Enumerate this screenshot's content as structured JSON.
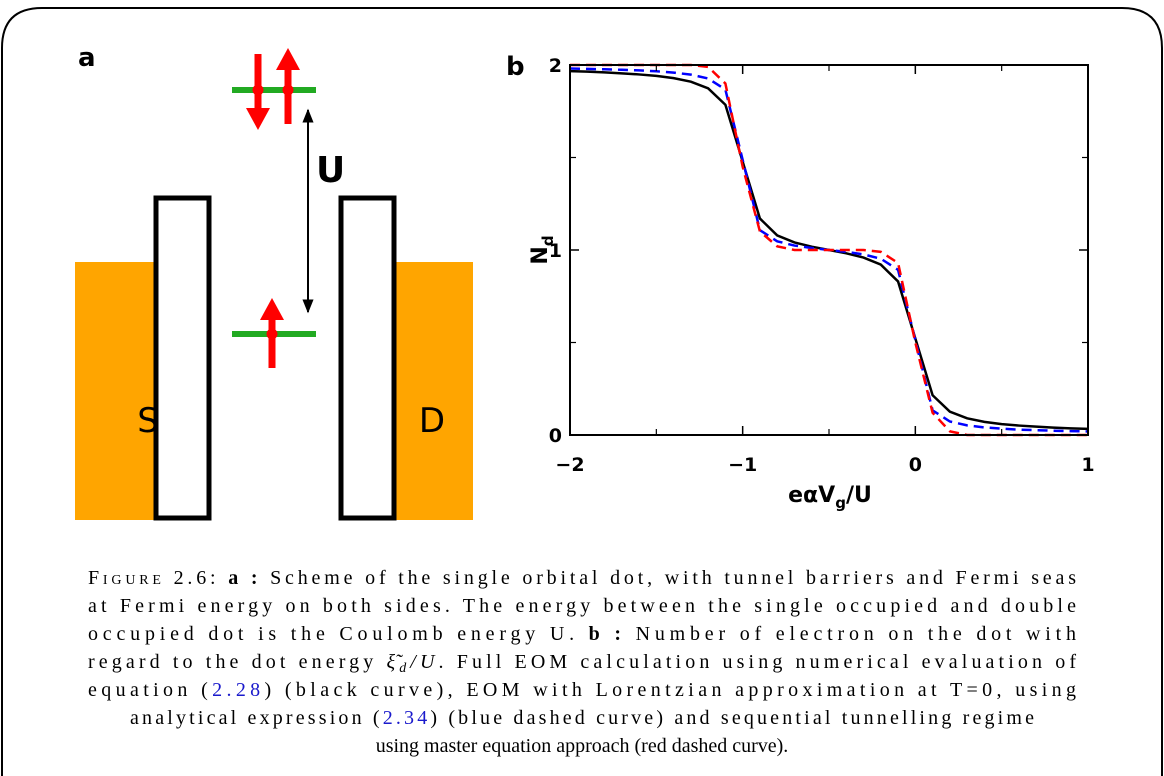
{
  "panel_a": {
    "label": "a",
    "u_label": "U",
    "source_label": "S",
    "drain_label": "D"
  },
  "chart_data": {
    "type": "line",
    "panel_label": "b",
    "xlabel": [
      "eαV",
      "g",
      "/U"
    ],
    "ylabel": [
      "N",
      "d"
    ],
    "x": [
      -2,
      -1.9,
      -1.8,
      -1.7,
      -1.6,
      -1.5,
      -1.4,
      -1.3,
      -1.2,
      -1.1,
      -1,
      -0.9,
      -0.8,
      -0.7,
      -0.6,
      -0.5,
      -0.4,
      -0.3,
      -0.2,
      -0.1,
      0,
      0.1,
      0.2,
      0.3,
      0.4,
      0.5,
      0.6,
      0.7,
      0.8,
      0.9,
      1
    ],
    "series": [
      {
        "color": "#000000",
        "dashed": false,
        "values": [
          1.967,
          1.964,
          1.96,
          1.955,
          1.949,
          1.941,
          1.929,
          1.91,
          1.874,
          1.785,
          1.478,
          1.17,
          1.079,
          1.041,
          1.018,
          1.0,
          0.982,
          0.959,
          0.921,
          0.83,
          0.522,
          0.215,
          0.126,
          0.09,
          0.071,
          0.059,
          0.051,
          0.045,
          0.04,
          0.036,
          0.033
        ]
      },
      {
        "color": "#0000ff",
        "dashed": true,
        "values": [
          1.981,
          1.979,
          1.977,
          1.974,
          1.971,
          1.966,
          1.959,
          1.948,
          1.927,
          1.867,
          1.487,
          1.107,
          1.047,
          1.024,
          1.011,
          1.0,
          0.99,
          0.976,
          0.953,
          0.893,
          0.513,
          0.133,
          0.073,
          0.052,
          0.041,
          0.034,
          0.029,
          0.026,
          0.023,
          0.021,
          0.019
        ]
      },
      {
        "color": "#ff0000",
        "dashed": true,
        "values": [
          2.0,
          2.0,
          2.0,
          2.0,
          2.0,
          2.0,
          2.0,
          2.0,
          1.99,
          1.9,
          1.45,
          1.1,
          1.02,
          1.0,
          1.0,
          1.0,
          1.0,
          1.0,
          0.99,
          0.93,
          0.5,
          0.12,
          0.02,
          0.0,
          0.0,
          0.0,
          0.0,
          0.0,
          0.0,
          0.0,
          0.0
        ]
      }
    ],
    "xlim": [
      -2,
      1
    ],
    "ylim": [
      0,
      2
    ],
    "xticks": [
      {
        "value": -2,
        "label": "−2"
      },
      {
        "value": -1,
        "label": "−1"
      },
      0,
      1
    ],
    "xminorticks": [
      -1.5,
      -0.5,
      0.5
    ],
    "yticks": [
      0,
      1,
      2
    ],
    "yminorticks": [
      0.5,
      1.5
    ]
  },
  "caption": {
    "lines": [
      [
        "Figure 2.6: ",
        "a :",
        " Scheme of the single orbital dot, with tunnel barriers and Fermi seas"
      ],
      [
        "at Fermi energy on both sides. The energy between the single occupied and double"
      ],
      [
        "occupied dot is the Coulomb energy U. ",
        "b :",
        " Number of electron on the dot with"
      ],
      [
        "regard to the dot energy ",
        "ξ̃",
        "d",
        "/U",
        ". Full EOM calculation using numerical evaluation of"
      ],
      [
        "equation (",
        "2.28",
        ") (black curve), EOM with Lorentzian approximation at T=0, using"
      ],
      [
        "analytical expression (",
        "2.34",
        ") (blue dashed curve) and sequential tunnelling regime"
      ],
      [
        "using master equation approach (red dashed curve)."
      ]
    ]
  }
}
